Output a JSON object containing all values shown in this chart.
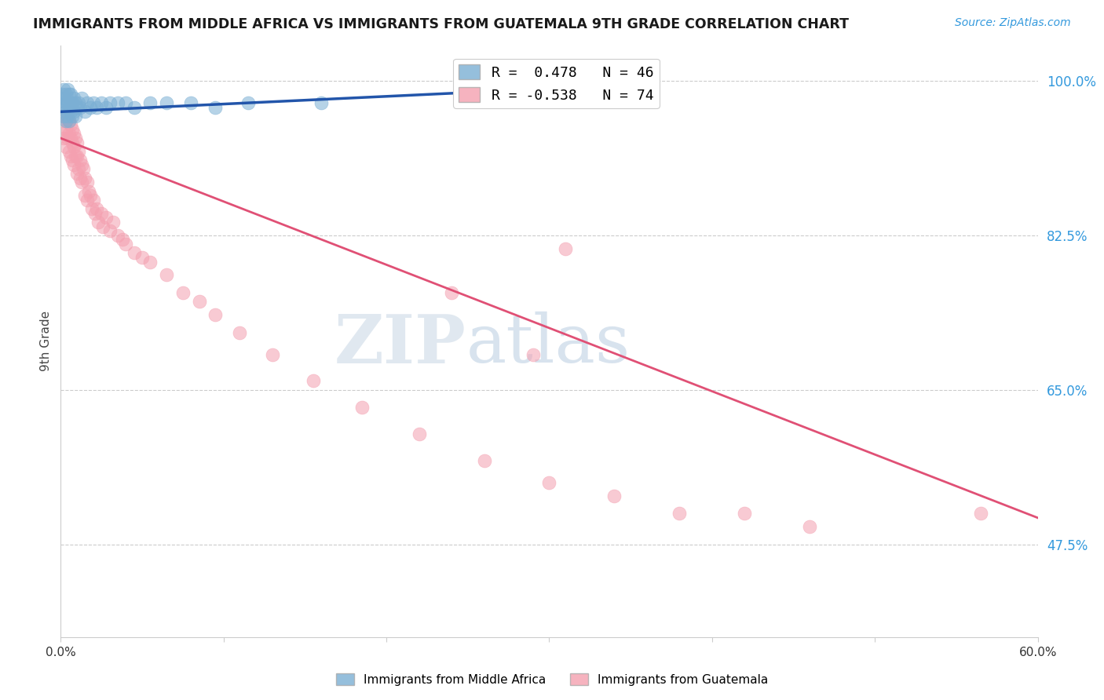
{
  "title": "IMMIGRANTS FROM MIDDLE AFRICA VS IMMIGRANTS FROM GUATEMALA 9TH GRADE CORRELATION CHART",
  "source": "Source: ZipAtlas.com",
  "ylabel": "9th Grade",
  "ytick_labels": [
    "100.0%",
    "82.5%",
    "65.0%",
    "47.5%"
  ],
  "ytick_values": [
    1.0,
    0.825,
    0.65,
    0.475
  ],
  "xmin": 0.0,
  "xmax": 0.6,
  "ymin": 0.37,
  "ymax": 1.04,
  "blue_R": 0.478,
  "blue_N": 46,
  "pink_R": -0.538,
  "pink_N": 74,
  "legend_text_blue": "R =  0.478   N = 46",
  "legend_text_pink": "R = -0.538   N = 74",
  "blue_color": "#7BAFD4",
  "pink_color": "#F4A0B0",
  "blue_line_color": "#2255AA",
  "pink_line_color": "#E05075",
  "watermark_zip": "ZIP",
  "watermark_atlas": "atlas",
  "blue_line_x0": 0.0,
  "blue_line_y0": 0.965,
  "blue_line_x1": 0.345,
  "blue_line_y1": 0.995,
  "pink_line_x0": 0.0,
  "pink_line_y0": 0.935,
  "pink_line_x1": 0.6,
  "pink_line_y1": 0.505,
  "blue_scatter_x": [
    0.001,
    0.001,
    0.002,
    0.002,
    0.002,
    0.002,
    0.003,
    0.003,
    0.003,
    0.003,
    0.004,
    0.004,
    0.004,
    0.005,
    0.005,
    0.005,
    0.006,
    0.006,
    0.006,
    0.007,
    0.007,
    0.008,
    0.008,
    0.009,
    0.009,
    0.01,
    0.011,
    0.012,
    0.013,
    0.015,
    0.016,
    0.018,
    0.02,
    0.022,
    0.025,
    0.028,
    0.03,
    0.035,
    0.04,
    0.045,
    0.055,
    0.065,
    0.08,
    0.095,
    0.115,
    0.16
  ],
  "blue_scatter_y": [
    0.985,
    0.975,
    0.99,
    0.98,
    0.97,
    0.96,
    0.985,
    0.975,
    0.965,
    0.955,
    0.99,
    0.975,
    0.96,
    0.985,
    0.97,
    0.955,
    0.975,
    0.965,
    0.985,
    0.975,
    0.96,
    0.98,
    0.965,
    0.975,
    0.96,
    0.97,
    0.975,
    0.97,
    0.98,
    0.965,
    0.975,
    0.97,
    0.975,
    0.97,
    0.975,
    0.97,
    0.975,
    0.975,
    0.975,
    0.97,
    0.975,
    0.975,
    0.975,
    0.97,
    0.975,
    0.975
  ],
  "pink_scatter_x": [
    0.001,
    0.001,
    0.002,
    0.002,
    0.003,
    0.003,
    0.003,
    0.004,
    0.004,
    0.005,
    0.005,
    0.005,
    0.006,
    0.006,
    0.006,
    0.007,
    0.007,
    0.007,
    0.008,
    0.008,
    0.008,
    0.009,
    0.009,
    0.01,
    0.01,
    0.01,
    0.011,
    0.011,
    0.012,
    0.012,
    0.013,
    0.013,
    0.014,
    0.015,
    0.015,
    0.016,
    0.016,
    0.017,
    0.018,
    0.019,
    0.02,
    0.021,
    0.022,
    0.023,
    0.025,
    0.026,
    0.028,
    0.03,
    0.032,
    0.035,
    0.038,
    0.04,
    0.045,
    0.05,
    0.055,
    0.065,
    0.075,
    0.085,
    0.095,
    0.11,
    0.13,
    0.155,
    0.185,
    0.22,
    0.26,
    0.3,
    0.34,
    0.38,
    0.42,
    0.46,
    0.31,
    0.24,
    0.29,
    0.565
  ],
  "pink_scatter_y": [
    0.96,
    0.94,
    0.955,
    0.935,
    0.96,
    0.945,
    0.925,
    0.955,
    0.935,
    0.955,
    0.94,
    0.92,
    0.95,
    0.935,
    0.915,
    0.945,
    0.93,
    0.91,
    0.94,
    0.925,
    0.905,
    0.935,
    0.915,
    0.93,
    0.915,
    0.895,
    0.92,
    0.9,
    0.91,
    0.89,
    0.905,
    0.885,
    0.9,
    0.89,
    0.87,
    0.885,
    0.865,
    0.875,
    0.87,
    0.855,
    0.865,
    0.85,
    0.855,
    0.84,
    0.85,
    0.835,
    0.845,
    0.83,
    0.84,
    0.825,
    0.82,
    0.815,
    0.805,
    0.8,
    0.795,
    0.78,
    0.76,
    0.75,
    0.735,
    0.715,
    0.69,
    0.66,
    0.63,
    0.6,
    0.57,
    0.545,
    0.53,
    0.51,
    0.51,
    0.495,
    0.81,
    0.76,
    0.69,
    0.51
  ]
}
